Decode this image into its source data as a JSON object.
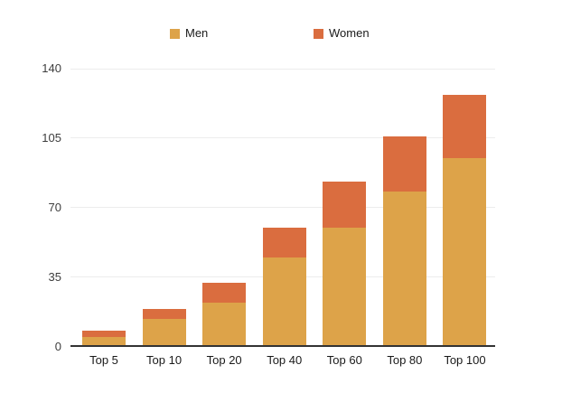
{
  "legend": {
    "items": [
      {
        "label": "Men",
        "color": "#DDA349"
      },
      {
        "label": "Women",
        "color": "#DA6D3F"
      }
    ]
  },
  "chart_data": {
    "type": "bar",
    "stacked": true,
    "title": "",
    "categories": [
      "Top 5",
      "Top 10",
      "Top 20",
      "Top 40",
      "Top 60",
      "Top 80",
      "Top 100"
    ],
    "series": [
      {
        "name": "Men",
        "color": "#DDA349",
        "values": [
          5,
          14,
          22,
          45,
          60,
          78,
          95
        ]
      },
      {
        "name": "Women",
        "color": "#DA6D3F",
        "values": [
          3,
          5,
          10,
          15,
          23,
          28,
          32
        ]
      }
    ],
    "ylim": [
      0,
      140
    ],
    "yticks": [
      0,
      35,
      70,
      105,
      140
    ],
    "xlabel": "",
    "ylabel": "",
    "grid": true,
    "legend_position": "top",
    "colors": {
      "gridline": "#ECECEC",
      "axis": "#333333",
      "y_tick_text": "#3D3D3D",
      "x_tick_text": "#1A1A1A",
      "background": "#FFFFFF"
    }
  }
}
